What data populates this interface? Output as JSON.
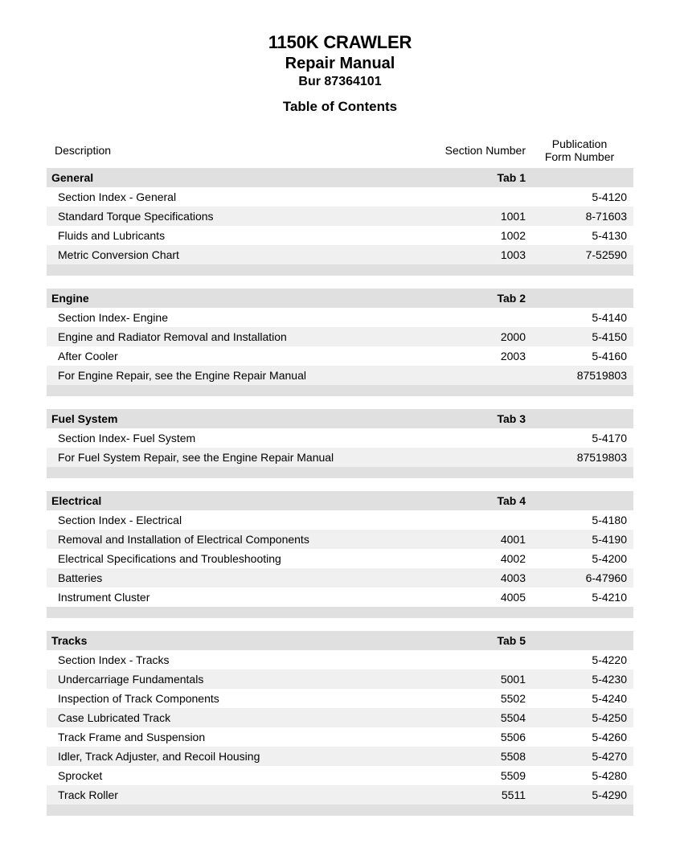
{
  "colors": {
    "background": "#ffffff",
    "section_header_bg": "#e0e0e0",
    "alt_row_bg": "#f0f0f0",
    "text": "#000000"
  },
  "typography": {
    "font_family": "Arial, Helvetica, sans-serif",
    "title_fontsize_pt": 16,
    "body_fontsize_pt": 10.5
  },
  "title": {
    "line1": "1150K CRAWLER",
    "line2": "Repair Manual",
    "line3": "Bur 87364101",
    "toc": "Table of Contents"
  },
  "columns": {
    "description": "Description",
    "section_number": "Section Number",
    "publication_line1": "Publication",
    "publication_line2": "Form Number"
  },
  "sections": [
    {
      "name": "General",
      "tab": "Tab 1",
      "rows": [
        {
          "desc": "Section Index - General",
          "sec": "",
          "pub": "5-4120"
        },
        {
          "desc": "Standard Torque Specifications",
          "sec": "1001",
          "pub": "8-71603"
        },
        {
          "desc": "Fluids and Lubricants",
          "sec": "1002",
          "pub": "5-4130"
        },
        {
          "desc": "Metric Conversion Chart",
          "sec": "1003",
          "pub": "7-52590"
        }
      ]
    },
    {
      "name": "Engine",
      "tab": "Tab 2",
      "rows": [
        {
          "desc": "Section Index- Engine",
          "sec": "",
          "pub": "5-4140"
        },
        {
          "desc": "Engine and Radiator Removal and Installation",
          "sec": "2000",
          "pub": "5-4150"
        },
        {
          "desc": "After Cooler",
          "sec": "2003",
          "pub": "5-4160"
        },
        {
          "desc": "For Engine Repair, see the Engine Repair Manual",
          "sec": "",
          "pub": "87519803"
        }
      ]
    },
    {
      "name": "Fuel System",
      "tab": "Tab 3",
      "rows": [
        {
          "desc": "Section Index- Fuel System",
          "sec": "",
          "pub": "5-4170"
        },
        {
          "desc": "For Fuel System Repair, see the Engine Repair Manual",
          "sec": "",
          "pub": "87519803"
        }
      ]
    },
    {
      "name": "Electrical",
      "tab": "Tab 4",
      "rows": [
        {
          "desc": "Section Index - Electrical",
          "sec": "",
          "pub": "5-4180"
        },
        {
          "desc": "Removal and Installation of Electrical Components",
          "sec": "4001",
          "pub": "5-4190"
        },
        {
          "desc": "Electrical Specifications and Troubleshooting",
          "sec": "4002",
          "pub": "5-4200"
        },
        {
          "desc": "Batteries",
          "sec": "4003",
          "pub": "6-47960"
        },
        {
          "desc": "Instrument Cluster",
          "sec": "4005",
          "pub": "5-4210"
        }
      ]
    },
    {
      "name": "Tracks",
      "tab": "Tab 5",
      "rows": [
        {
          "desc": "Section Index - Tracks",
          "sec": "",
          "pub": "5-4220"
        },
        {
          "desc": "Undercarriage Fundamentals",
          "sec": "5001",
          "pub": "5-4230"
        },
        {
          "desc": "Inspection of Track Components",
          "sec": "5502",
          "pub": "5-4240"
        },
        {
          "desc": "Case Lubricated Track",
          "sec": "5504",
          "pub": "5-4250"
        },
        {
          "desc": "Track Frame and Suspension",
          "sec": "5506",
          "pub": "5-4260"
        },
        {
          "desc": "Idler, Track Adjuster, and Recoil Housing",
          "sec": "5508",
          "pub": "5-4270"
        },
        {
          "desc": "Sprocket",
          "sec": "5509",
          "pub": "5-4280"
        },
        {
          "desc": "Track Roller",
          "sec": "5511",
          "pub": "5-4290"
        }
      ]
    }
  ]
}
